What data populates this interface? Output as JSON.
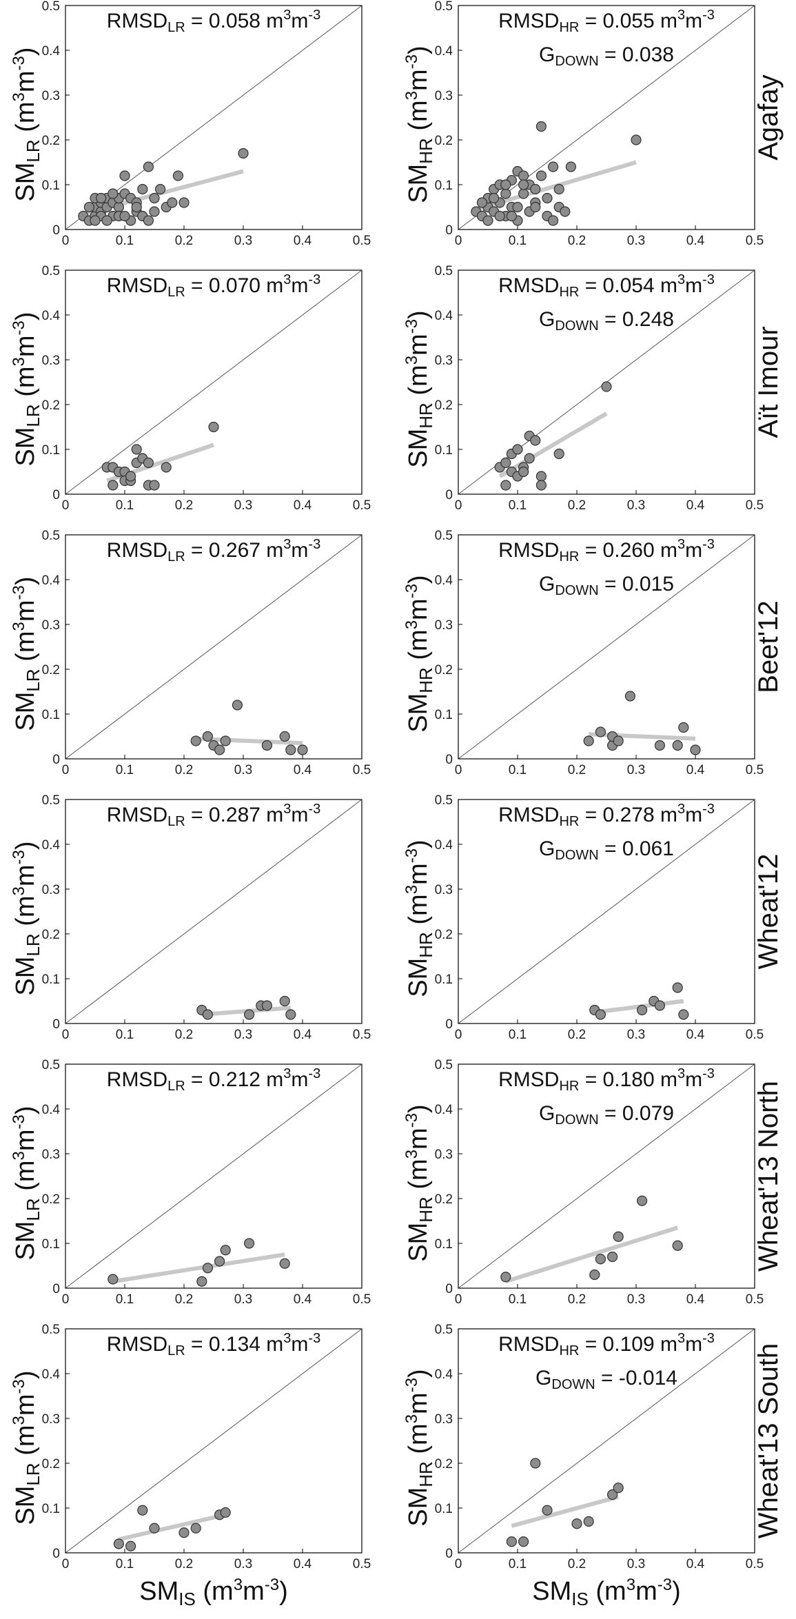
{
  "figure": {
    "x_label_main": "SM",
    "x_label_sub": "IS",
    "unit_text": "(m",
    "unit_sup": "3",
    "unit_mid": "m",
    "unit_sup2": "-3",
    "unit_end": ")",
    "ann_unit_main": "m",
    "ann_unit_sup": "3",
    "ann_unit_mid": "m",
    "ann_unit_sup2": "-3",
    "ylabel_main": "SM",
    "ylabel_sub_lr": "LR",
    "ylabel_sub_hr": "HR",
    "rmsd_label": "RMSD",
    "gdown_label": "G",
    "gdown_sub": "DOWN",
    "colors": {
      "point_fill": "#8c8c8c",
      "point_stroke": "#333333",
      "trend": "#c8c8c8",
      "axis": "#000000",
      "diag": "#555555"
    }
  },
  "chart_data": [
    {
      "type": "scatter",
      "row": 0,
      "col": 0,
      "site": "Agafay",
      "ylabel_sub": "LR",
      "rmsd_sub": "LR",
      "rmsd": "0.058",
      "gdown": null,
      "xlim": [
        0,
        0.5
      ],
      "ylim": [
        0,
        0.5
      ],
      "xticks": [
        "0",
        "0.1",
        "0.2",
        "0.3",
        "0.4",
        "0.5"
      ],
      "yticks": [
        "0",
        "0.1",
        "0.2",
        "0.3",
        "0.4",
        "0.5"
      ],
      "points": [
        [
          0.03,
          0.03
        ],
        [
          0.04,
          0.02
        ],
        [
          0.05,
          0.03
        ],
        [
          0.05,
          0.05
        ],
        [
          0.06,
          0.04
        ],
        [
          0.06,
          0.06
        ],
        [
          0.07,
          0.05
        ],
        [
          0.07,
          0.07
        ],
        [
          0.08,
          0.03
        ],
        [
          0.08,
          0.06
        ],
        [
          0.09,
          0.05
        ],
        [
          0.09,
          0.07
        ],
        [
          0.1,
          0.08
        ],
        [
          0.1,
          0.12
        ],
        [
          0.11,
          0.02
        ],
        [
          0.11,
          0.07
        ],
        [
          0.12,
          0.04
        ],
        [
          0.12,
          0.06
        ],
        [
          0.13,
          0.03
        ],
        [
          0.13,
          0.09
        ],
        [
          0.14,
          0.14
        ],
        [
          0.15,
          0.04
        ],
        [
          0.15,
          0.07
        ],
        [
          0.16,
          0.09
        ],
        [
          0.17,
          0.05
        ],
        [
          0.18,
          0.06
        ],
        [
          0.19,
          0.12
        ],
        [
          0.2,
          0.06
        ],
        [
          0.3,
          0.17
        ],
        [
          0.04,
          0.05
        ],
        [
          0.05,
          0.07
        ],
        [
          0.06,
          0.03
        ],
        [
          0.07,
          0.02
        ],
        [
          0.08,
          0.08
        ],
        [
          0.09,
          0.03
        ],
        [
          0.1,
          0.03
        ],
        [
          0.12,
          0.05
        ],
        [
          0.14,
          0.02
        ],
        [
          0.05,
          0.02
        ],
        [
          0.06,
          0.07
        ]
      ],
      "trend": [
        [
          0.03,
          0.035
        ],
        [
          0.3,
          0.13
        ]
      ]
    },
    {
      "type": "scatter",
      "row": 0,
      "col": 1,
      "site": "Agafay",
      "ylabel_sub": "HR",
      "rmsd_sub": "HR",
      "rmsd": "0.055",
      "gdown": "0.038",
      "xlim": [
        0,
        0.5
      ],
      "ylim": [
        0,
        0.5
      ],
      "xticks": [
        "0",
        "0.1",
        "0.2",
        "0.3",
        "0.4",
        "0.5"
      ],
      "yticks": [
        "0",
        "0.1",
        "0.2",
        "0.3",
        "0.4",
        "0.5"
      ],
      "points": [
        [
          0.03,
          0.04
        ],
        [
          0.04,
          0.03
        ],
        [
          0.05,
          0.05
        ],
        [
          0.05,
          0.07
        ],
        [
          0.06,
          0.04
        ],
        [
          0.06,
          0.09
        ],
        [
          0.07,
          0.06
        ],
        [
          0.07,
          0.1
        ],
        [
          0.08,
          0.03
        ],
        [
          0.08,
          0.08
        ],
        [
          0.09,
          0.11
        ],
        [
          0.09,
          0.05
        ],
        [
          0.1,
          0.13
        ],
        [
          0.1,
          0.02
        ],
        [
          0.11,
          0.08
        ],
        [
          0.11,
          0.12
        ],
        [
          0.12,
          0.04
        ],
        [
          0.12,
          0.1
        ],
        [
          0.13,
          0.06
        ],
        [
          0.13,
          0.09
        ],
        [
          0.14,
          0.23
        ],
        [
          0.14,
          0.12
        ],
        [
          0.15,
          0.03
        ],
        [
          0.15,
          0.07
        ],
        [
          0.16,
          0.14
        ],
        [
          0.17,
          0.05
        ],
        [
          0.17,
          0.09
        ],
        [
          0.18,
          0.04
        ],
        [
          0.19,
          0.14
        ],
        [
          0.3,
          0.2
        ],
        [
          0.04,
          0.06
        ],
        [
          0.05,
          0.02
        ],
        [
          0.06,
          0.07
        ],
        [
          0.07,
          0.03
        ],
        [
          0.08,
          0.1
        ],
        [
          0.09,
          0.03
        ],
        [
          0.1,
          0.05
        ],
        [
          0.11,
          0.1
        ],
        [
          0.13,
          0.05
        ],
        [
          0.16,
          0.02
        ]
      ],
      "trend": [
        [
          0.03,
          0.045
        ],
        [
          0.3,
          0.15
        ]
      ]
    },
    {
      "type": "scatter",
      "row": 1,
      "col": 0,
      "site": "Aït Imour",
      "ylabel_sub": "LR",
      "rmsd_sub": "LR",
      "rmsd": "0.070",
      "gdown": null,
      "xlim": [
        0,
        0.5
      ],
      "ylim": [
        0,
        0.5
      ],
      "xticks": [
        "0",
        "0.1",
        "0.2",
        "0.3",
        "0.4",
        "0.5"
      ],
      "yticks": [
        "0",
        "0.1",
        "0.2",
        "0.3",
        "0.4",
        "0.5"
      ],
      "points": [
        [
          0.07,
          0.06
        ],
        [
          0.08,
          0.02
        ],
        [
          0.08,
          0.06
        ],
        [
          0.09,
          0.05
        ],
        [
          0.1,
          0.05
        ],
        [
          0.1,
          0.03
        ],
        [
          0.11,
          0.03
        ],
        [
          0.11,
          0.04
        ],
        [
          0.12,
          0.1
        ],
        [
          0.12,
          0.07
        ],
        [
          0.13,
          0.08
        ],
        [
          0.14,
          0.07
        ],
        [
          0.14,
          0.02
        ],
        [
          0.15,
          0.02
        ],
        [
          0.17,
          0.06
        ],
        [
          0.25,
          0.15
        ]
      ],
      "trend": [
        [
          0.07,
          0.03
        ],
        [
          0.25,
          0.11
        ]
      ]
    },
    {
      "type": "scatter",
      "row": 1,
      "col": 1,
      "site": "Aït Imour",
      "ylabel_sub": "HR",
      "rmsd_sub": "HR",
      "rmsd": "0.054",
      "gdown": "0.248",
      "xlim": [
        0,
        0.5
      ],
      "ylim": [
        0,
        0.5
      ],
      "xticks": [
        "0",
        "0.1",
        "0.2",
        "0.3",
        "0.4",
        "0.5"
      ],
      "yticks": [
        "0",
        "0.1",
        "0.2",
        "0.3",
        "0.4",
        "0.5"
      ],
      "points": [
        [
          0.07,
          0.06
        ],
        [
          0.08,
          0.02
        ],
        [
          0.08,
          0.07
        ],
        [
          0.09,
          0.09
        ],
        [
          0.09,
          0.05
        ],
        [
          0.1,
          0.1
        ],
        [
          0.1,
          0.04
        ],
        [
          0.11,
          0.06
        ],
        [
          0.11,
          0.05
        ],
        [
          0.12,
          0.13
        ],
        [
          0.12,
          0.08
        ],
        [
          0.13,
          0.12
        ],
        [
          0.14,
          0.04
        ],
        [
          0.14,
          0.02
        ],
        [
          0.17,
          0.09
        ],
        [
          0.25,
          0.24
        ]
      ],
      "trend": [
        [
          0.07,
          0.04
        ],
        [
          0.25,
          0.18
        ]
      ]
    },
    {
      "type": "scatter",
      "row": 2,
      "col": 0,
      "site": "Beet'12",
      "ylabel_sub": "LR",
      "rmsd_sub": "LR",
      "rmsd": "0.267",
      "gdown": null,
      "xlim": [
        0,
        0.5
      ],
      "ylim": [
        0,
        0.5
      ],
      "xticks": [
        "0",
        "0.1",
        "0.2",
        "0.3",
        "0.4",
        "0.5"
      ],
      "yticks": [
        "0",
        "0.1",
        "0.2",
        "0.3",
        "0.4",
        "0.5"
      ],
      "points": [
        [
          0.22,
          0.04
        ],
        [
          0.24,
          0.05
        ],
        [
          0.25,
          0.03
        ],
        [
          0.26,
          0.02
        ],
        [
          0.27,
          0.04
        ],
        [
          0.29,
          0.12
        ],
        [
          0.34,
          0.03
        ],
        [
          0.37,
          0.05
        ],
        [
          0.38,
          0.02
        ],
        [
          0.4,
          0.02
        ]
      ],
      "trend": [
        [
          0.22,
          0.045
        ],
        [
          0.4,
          0.035
        ]
      ]
    },
    {
      "type": "scatter",
      "row": 2,
      "col": 1,
      "site": "Beet'12",
      "ylabel_sub": "HR",
      "rmsd_sub": "HR",
      "rmsd": "0.260",
      "gdown": "0.015",
      "xlim": [
        0,
        0.5
      ],
      "ylim": [
        0,
        0.5
      ],
      "xticks": [
        "0",
        "0.1",
        "0.2",
        "0.3",
        "0.4",
        "0.5"
      ],
      "yticks": [
        "0",
        "0.1",
        "0.2",
        "0.3",
        "0.4",
        "0.5"
      ],
      "points": [
        [
          0.22,
          0.04
        ],
        [
          0.24,
          0.06
        ],
        [
          0.26,
          0.03
        ],
        [
          0.26,
          0.05
        ],
        [
          0.27,
          0.04
        ],
        [
          0.29,
          0.14
        ],
        [
          0.34,
          0.03
        ],
        [
          0.37,
          0.03
        ],
        [
          0.38,
          0.07
        ],
        [
          0.4,
          0.02
        ]
      ],
      "trend": [
        [
          0.22,
          0.055
        ],
        [
          0.4,
          0.045
        ]
      ]
    },
    {
      "type": "scatter",
      "row": 3,
      "col": 0,
      "site": "Wheat'12",
      "ylabel_sub": "LR",
      "rmsd_sub": "LR",
      "rmsd": "0.287",
      "gdown": null,
      "xlim": [
        0,
        0.5
      ],
      "ylim": [
        0,
        0.5
      ],
      "xticks": [
        "0",
        "0.1",
        "0.2",
        "0.3",
        "0.4",
        "0.5"
      ],
      "yticks": [
        "0",
        "0.1",
        "0.2",
        "0.3",
        "0.4",
        "0.5"
      ],
      "points": [
        [
          0.23,
          0.03
        ],
        [
          0.24,
          0.02
        ],
        [
          0.31,
          0.02
        ],
        [
          0.33,
          0.04
        ],
        [
          0.34,
          0.04
        ],
        [
          0.37,
          0.05
        ],
        [
          0.38,
          0.02
        ]
      ],
      "trend": [
        [
          0.23,
          0.02
        ],
        [
          0.38,
          0.035
        ]
      ]
    },
    {
      "type": "scatter",
      "row": 3,
      "col": 1,
      "site": "Wheat'12",
      "ylabel_sub": "HR",
      "rmsd_sub": "HR",
      "rmsd": "0.278",
      "gdown": "0.061",
      "xlim": [
        0,
        0.5
      ],
      "ylim": [
        0,
        0.5
      ],
      "xticks": [
        "0",
        "0.1",
        "0.2",
        "0.3",
        "0.4",
        "0.5"
      ],
      "yticks": [
        "0",
        "0.1",
        "0.2",
        "0.3",
        "0.4",
        "0.5"
      ],
      "points": [
        [
          0.23,
          0.03
        ],
        [
          0.24,
          0.02
        ],
        [
          0.31,
          0.03
        ],
        [
          0.33,
          0.05
        ],
        [
          0.34,
          0.04
        ],
        [
          0.37,
          0.08
        ],
        [
          0.38,
          0.02
        ]
      ],
      "trend": [
        [
          0.23,
          0.025
        ],
        [
          0.38,
          0.05
        ]
      ]
    },
    {
      "type": "scatter",
      "row": 4,
      "col": 0,
      "site": "Wheat'13 North",
      "ylabel_sub": "LR",
      "rmsd_sub": "LR",
      "rmsd": "0.212",
      "gdown": null,
      "xlim": [
        0,
        0.5
      ],
      "ylim": [
        0,
        0.5
      ],
      "xticks": [
        "0",
        "0.1",
        "0.2",
        "0.3",
        "0.4",
        "0.5"
      ],
      "yticks": [
        "0",
        "0.1",
        "0.2",
        "0.3",
        "0.4",
        "0.5"
      ],
      "points": [
        [
          0.08,
          0.02
        ],
        [
          0.23,
          0.015
        ],
        [
          0.24,
          0.045
        ],
        [
          0.26,
          0.06
        ],
        [
          0.27,
          0.085
        ],
        [
          0.31,
          0.1
        ],
        [
          0.37,
          0.055
        ]
      ],
      "trend": [
        [
          0.08,
          0.015
        ],
        [
          0.37,
          0.075
        ]
      ]
    },
    {
      "type": "scatter",
      "row": 4,
      "col": 1,
      "site": "Wheat'13 North",
      "ylabel_sub": "HR",
      "rmsd_sub": "HR",
      "rmsd": "0.180",
      "gdown": "0.079",
      "xlim": [
        0,
        0.5
      ],
      "ylim": [
        0,
        0.5
      ],
      "xticks": [
        "0",
        "0.1",
        "0.2",
        "0.3",
        "0.4",
        "0.5"
      ],
      "yticks": [
        "0",
        "0.1",
        "0.2",
        "0.3",
        "0.4",
        "0.5"
      ],
      "points": [
        [
          0.08,
          0.025
        ],
        [
          0.23,
          0.03
        ],
        [
          0.24,
          0.065
        ],
        [
          0.26,
          0.07
        ],
        [
          0.27,
          0.115
        ],
        [
          0.31,
          0.195
        ],
        [
          0.37,
          0.095
        ]
      ],
      "trend": [
        [
          0.08,
          0.015
        ],
        [
          0.37,
          0.135
        ]
      ]
    },
    {
      "type": "scatter",
      "row": 5,
      "col": 0,
      "site": "Wheat'13 South",
      "ylabel_sub": "LR",
      "rmsd_sub": "LR",
      "rmsd": "0.134",
      "gdown": null,
      "xlim": [
        0,
        0.5
      ],
      "ylim": [
        0,
        0.5
      ],
      "xticks": [
        "0",
        "0.1",
        "0.2",
        "0.3",
        "0.4",
        "0.5"
      ],
      "yticks": [
        "0",
        "0.1",
        "0.2",
        "0.3",
        "0.4",
        "0.5"
      ],
      "points": [
        [
          0.09,
          0.02
        ],
        [
          0.11,
          0.015
        ],
        [
          0.13,
          0.095
        ],
        [
          0.15,
          0.055
        ],
        [
          0.2,
          0.045
        ],
        [
          0.22,
          0.055
        ],
        [
          0.26,
          0.085
        ],
        [
          0.27,
          0.09
        ]
      ],
      "trend": [
        [
          0.09,
          0.03
        ],
        [
          0.27,
          0.085
        ]
      ]
    },
    {
      "type": "scatter",
      "row": 5,
      "col": 1,
      "site": "Wheat'13 South",
      "ylabel_sub": "HR",
      "rmsd_sub": "HR",
      "rmsd": "0.109",
      "gdown": "-0.014",
      "xlim": [
        0,
        0.5
      ],
      "ylim": [
        0,
        0.5
      ],
      "xticks": [
        "0",
        "0.1",
        "0.2",
        "0.3",
        "0.4",
        "0.5"
      ],
      "yticks": [
        "0",
        "0.1",
        "0.2",
        "0.3",
        "0.4",
        "0.5"
      ],
      "points": [
        [
          0.09,
          0.025
        ],
        [
          0.11,
          0.025
        ],
        [
          0.13,
          0.2
        ],
        [
          0.15,
          0.095
        ],
        [
          0.2,
          0.065
        ],
        [
          0.22,
          0.07
        ],
        [
          0.26,
          0.13
        ],
        [
          0.27,
          0.145
        ]
      ],
      "trend": [
        [
          0.09,
          0.06
        ],
        [
          0.27,
          0.125
        ]
      ]
    }
  ]
}
